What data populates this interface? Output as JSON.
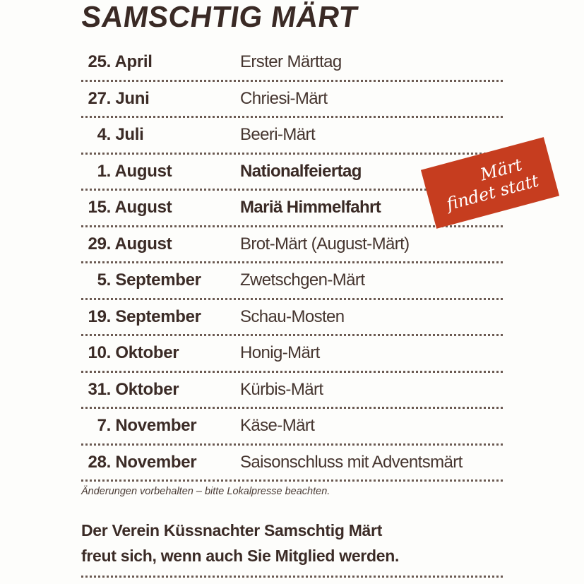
{
  "title": "SAMSCHTIG MÄRT",
  "events": [
    {
      "day": "25.",
      "month": "April",
      "name": "Erster Märttag",
      "bold": false
    },
    {
      "day": "27.",
      "month": "Juni",
      "name": "Chriesi-Märt",
      "bold": false
    },
    {
      "day": "4.",
      "month": "Juli",
      "name": "Beeri-Märt",
      "bold": false
    },
    {
      "day": "1.",
      "month": "August",
      "name": "Nationalfeiertag",
      "bold": true
    },
    {
      "day": "15.",
      "month": "August",
      "name": "Mariä Himmelfahrt",
      "bold": true
    },
    {
      "day": "29.",
      "month": "August",
      "name": "Brot-Märt (August-Märt)",
      "bold": false
    },
    {
      "day": "5.",
      "month": "September",
      "name": "Zwetschgen-Märt",
      "bold": false
    },
    {
      "day": "19.",
      "month": "September",
      "name": "Schau-Mosten",
      "bold": false
    },
    {
      "day": "10.",
      "month": "Oktober",
      "name": "Honig-Märt",
      "bold": false
    },
    {
      "day": "31.",
      "month": "Oktober",
      "name": "Kürbis-Märt",
      "bold": false
    },
    {
      "day": "7.",
      "month": "November",
      "name": "Käse-Märt",
      "bold": false
    },
    {
      "day": "28.",
      "month": "November",
      "name": "Saisonschluss mit Adventsmärt",
      "bold": false
    }
  ],
  "badge": {
    "line1": "Märt",
    "line2": "findet statt",
    "color": "#c63d1f"
  },
  "note": "Änderungen vorbehalten – bitte Lokalpresse beachten.",
  "footer": {
    "line1": "Der Verein Küssnachter Samschtig Märt",
    "line2": "freut sich, wenn auch Sie Mitglied werden."
  }
}
